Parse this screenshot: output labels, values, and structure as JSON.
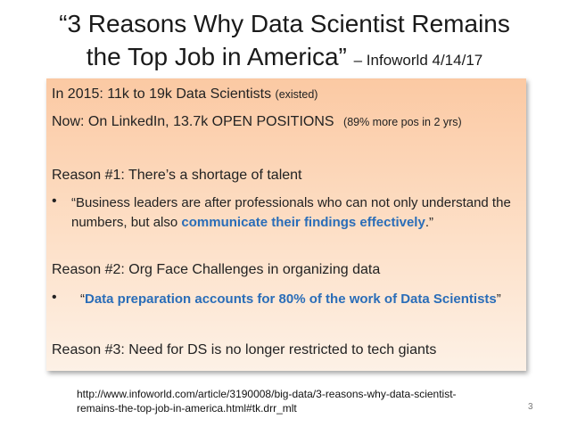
{
  "title": {
    "main_line1": "“3 Reasons Why Data Scientist Remains",
    "main_line2": "the Top Job in America”",
    "source": "– Infoworld 4/14/17"
  },
  "stats": {
    "line1_main": "In 2015:  11k to 19k Data Scientists",
    "line1_note": "(existed)",
    "line2_main": "Now:  On LinkedIn, 13.7k OPEN POSITIONS",
    "line2_note": "(89% more pos in 2 yrs)"
  },
  "reasons": {
    "r1_heading": "Reason #1: There’s a shortage of talent",
    "r1_bullet": "•",
    "r1_quote_pre": "“Business leaders are after professionals who can not only understand the numbers, but also ",
    "r1_quote_hl": "communicate their findings effectively",
    "r1_quote_post": ".”",
    "r2_heading": "Reason #2: Org Face Challenges in organizing data",
    "r2_bullet": "•",
    "r2_quote_open": "“",
    "r2_quote_hl": "Data preparation accounts for 80% of the work of Data Scientists",
    "r2_quote_close": "”",
    "r3_heading": "Reason #3: Need for DS is no longer restricted to tech giants"
  },
  "footer": {
    "url_line1": "http://www.infoworld.com/article/3190008/big-data/3-reasons-why-data-scientist-",
    "url_line2": "remains-the-top-job-in-america.html#tk.drr_mlt",
    "page_number": "3"
  }
}
